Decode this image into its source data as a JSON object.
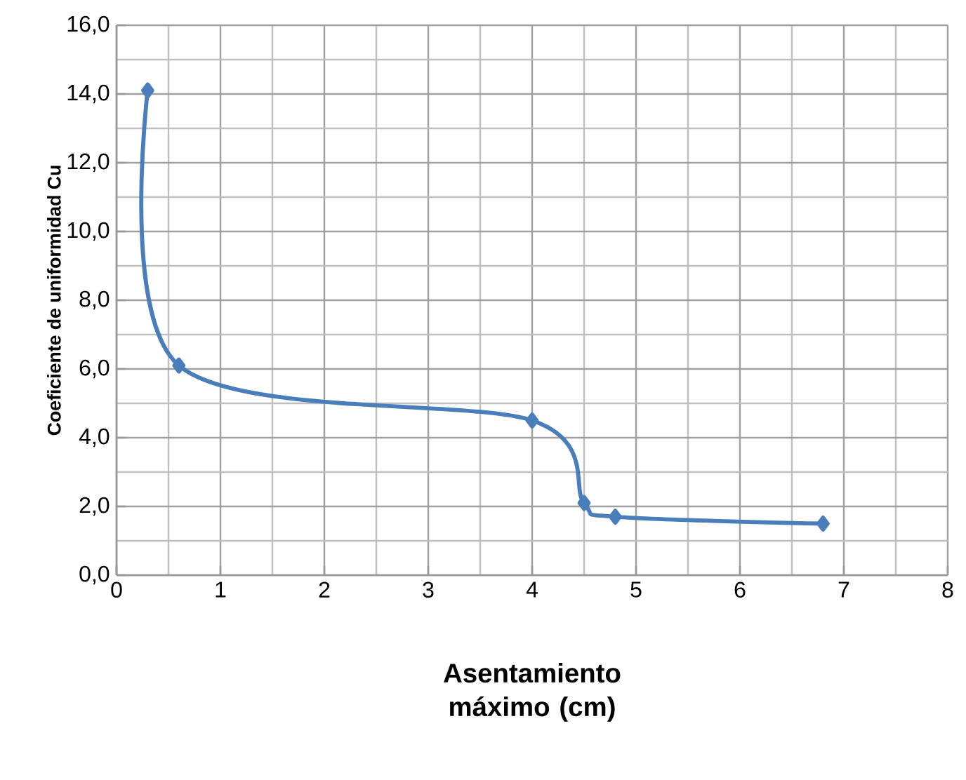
{
  "chart_data": {
    "type": "line",
    "xlabel": "Asentamiento máximo (cm)",
    "ylabel": "Coeficiente de uniformidad Cu",
    "x": [
      0.3,
      0.6,
      4.0,
      4.5,
      4.8,
      6.8
    ],
    "series": [
      {
        "color": "#4a7ebb",
        "values": [
          14.1,
          6.1,
          4.5,
          2.1,
          1.7,
          1.5
        ]
      }
    ],
    "xlim": [
      0,
      8
    ],
    "ylim": [
      0,
      16
    ],
    "xticks": [
      0,
      1,
      2,
      3,
      4,
      5,
      6,
      7,
      8
    ],
    "yticks": [
      {
        "value": 0,
        "label": "0,0"
      },
      {
        "value": 2,
        "label": "2,0"
      },
      {
        "value": 4,
        "label": "4,0"
      },
      {
        "value": 6,
        "label": "6,0"
      },
      {
        "value": 8,
        "label": "8,0"
      },
      {
        "value": 10,
        "label": "10,0"
      },
      {
        "value": 12,
        "label": "12,0"
      },
      {
        "value": 14,
        "label": "14,0"
      },
      {
        "value": 16,
        "label": "16,0"
      }
    ],
    "grid": true,
    "marker": "diamond",
    "line_style": "solid"
  }
}
